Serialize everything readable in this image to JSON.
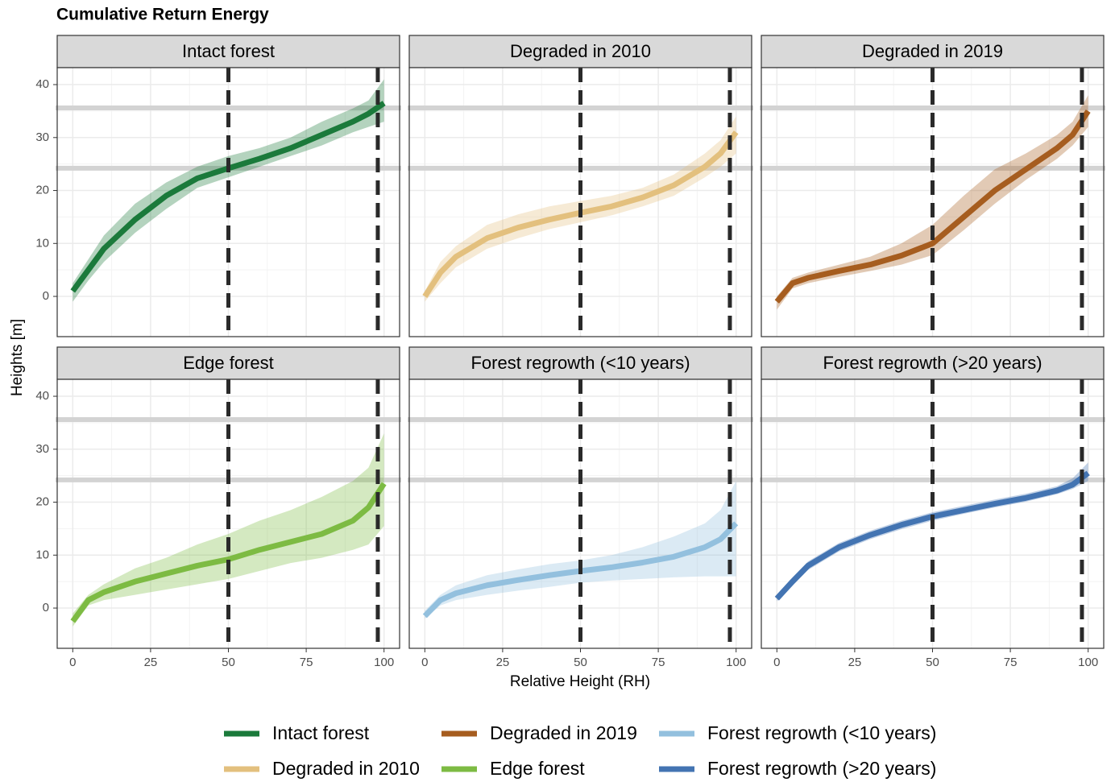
{
  "chart_data": {
    "type": "line",
    "title": "Cumulative Return Energy",
    "x_label": "Relative Height (RH)",
    "y_label": "Heights [m]",
    "xlim": [
      -5,
      105
    ],
    "ylim": [
      -7.6,
      43.2
    ],
    "xticks": [
      0,
      25,
      50,
      75,
      100
    ],
    "yticks": [
      0,
      10,
      20,
      30,
      40
    ],
    "grid": true,
    "legend": "bottom",
    "hlines": [
      35.6,
      24.2
    ],
    "vlines": [
      50,
      98
    ],
    "x": [
      0,
      5,
      10,
      20,
      30,
      40,
      50,
      60,
      70,
      80,
      90,
      95,
      100
    ],
    "panels": [
      {
        "title": "Intact forest",
        "series": {
          "name": "Intact forest",
          "color": "#1b7a3b",
          "values": [
            1,
            5,
            9,
            14.5,
            19,
            22.3,
            24.2,
            26,
            28,
            30.5,
            33,
            34.5,
            36.5
          ],
          "lower": [
            -1,
            3,
            6.5,
            12,
            16.5,
            20.5,
            22.5,
            24.5,
            26.5,
            28.5,
            31,
            32,
            33
          ],
          "upper": [
            2.5,
            7,
            11.5,
            17.5,
            21.5,
            24.5,
            26.5,
            28,
            30,
            33,
            35.5,
            37,
            41
          ]
        }
      },
      {
        "title": "Degraded in 2010",
        "series": {
          "name": "Degraded in 2010",
          "color": "#e3c07e",
          "values": [
            0,
            4.5,
            7.5,
            11,
            13,
            14.5,
            15.8,
            17,
            18.7,
            21,
            24.5,
            27,
            31
          ],
          "lower": [
            -1,
            2.5,
            5.5,
            9,
            11,
            12.7,
            14,
            15.3,
            17,
            19,
            22.5,
            24.5,
            27
          ],
          "upper": [
            1,
            6.5,
            9.5,
            13.5,
            15.5,
            17,
            18,
            19,
            20.5,
            23,
            27,
            29.5,
            34
          ]
        }
      },
      {
        "title": "Degraded in 2019",
        "series": {
          "name": "Degraded in 2019",
          "color": "#a65d1f",
          "values": [
            -1,
            2.5,
            3.5,
            4.8,
            6,
            7.7,
            10,
            15,
            20,
            24,
            28,
            30.5,
            35
          ],
          "lower": [
            -2.5,
            1.5,
            2.5,
            3.7,
            4.8,
            6,
            7.8,
            12.5,
            17.5,
            22,
            26,
            28.5,
            32
          ],
          "upper": [
            0,
            3.5,
            4.5,
            6,
            7.5,
            10,
            13.5,
            19,
            24,
            27,
            30.5,
            33,
            38
          ]
        }
      },
      {
        "title": "Edge forest",
        "series": {
          "name": "Edge forest",
          "color": "#7dbb43",
          "values": [
            -2.5,
            1.5,
            3,
            5,
            6.5,
            8,
            9.2,
            11,
            12.5,
            14,
            16.5,
            19,
            23.5
          ],
          "lower": [
            -3.5,
            0.5,
            1.5,
            2.5,
            3.5,
            4.5,
            5.5,
            7,
            8.5,
            9.5,
            11,
            12,
            15.5
          ],
          "upper": [
            -1,
            2.5,
            4.5,
            7.5,
            9.5,
            12,
            14,
            16.5,
            18.5,
            21,
            24,
            26.5,
            33
          ]
        }
      },
      {
        "title": "Forest regrowth (<10 years)",
        "series": {
          "name": "Forest regrowth (<10 years)",
          "color": "#93c0de",
          "values": [
            -1.5,
            1.5,
            2.8,
            4.3,
            5.3,
            6.2,
            7,
            7.7,
            8.6,
            9.7,
            11.5,
            13,
            16
          ],
          "lower": [
            -2,
            0.5,
            1.5,
            2.5,
            3.3,
            4,
            4.8,
            5.2,
            5.5,
            5.8,
            6,
            6,
            6
          ],
          "upper": [
            -0.5,
            2.5,
            4.3,
            6.2,
            7.3,
            8.3,
            9,
            10,
            11.5,
            13.5,
            16,
            18.5,
            24
          ]
        }
      },
      {
        "title": "Forest regrowth (>20 years)",
        "series": {
          "name": "Forest regrowth (>20 years)",
          "color": "#4374b2",
          "values": [
            1.8,
            5,
            8,
            11.5,
            13.8,
            15.7,
            17.3,
            18.5,
            19.7,
            20.8,
            22.2,
            23.3,
            25.5
          ],
          "lower": [
            1.3,
            4.2,
            7.2,
            10.7,
            13,
            14.9,
            16.5,
            17.8,
            19,
            20.1,
            21.5,
            22.5,
            24
          ],
          "upper": [
            2.3,
            5.8,
            8.8,
            12.3,
            14.6,
            16.5,
            18.1,
            19.3,
            20.5,
            21.6,
            23,
            24.5,
            27.5
          ]
        }
      }
    ]
  }
}
